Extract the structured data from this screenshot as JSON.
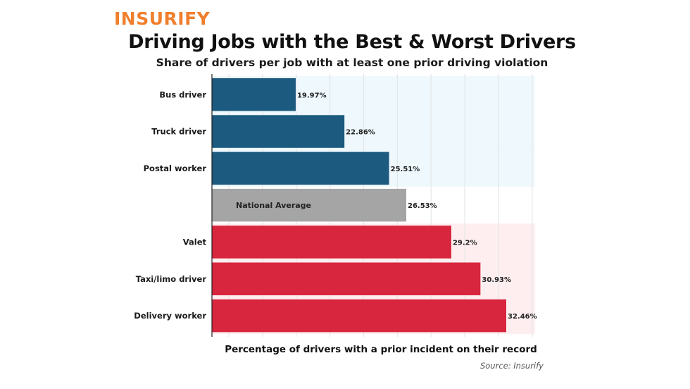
{
  "brand": "INSURIFY",
  "colors": {
    "brand": "#f07f2d",
    "best": "#1c5a80",
    "average": "#a5a5a5",
    "worst": "#d7263d",
    "band_best": "#e3f3fb",
    "band_worst": "#fde3e6",
    "grid": "#e6e6e6"
  },
  "chart_data": {
    "type": "bar",
    "orientation": "horizontal",
    "title": "Driving Jobs with the Best & Worst Drivers",
    "subtitle": "Share of drivers per job with at least one prior driving violation",
    "xlabel": "Percentage of drivers with a prior incident on their record",
    "ylabel": "",
    "source": "Source: Insurify",
    "xlim": [
      15,
      35
    ],
    "grid": true,
    "grid_step": 2,
    "categories": [
      "Bus driver",
      "Truck driver",
      "Postal worker",
      "National Average",
      "Valet",
      "Taxi/limo driver",
      "Delivery worker"
    ],
    "values": [
      19.97,
      22.86,
      25.51,
      26.53,
      29.2,
      30.93,
      32.46
    ],
    "value_labels": [
      "19.97%",
      "22.86%",
      "25.51%",
      "26.53%",
      "29.2%",
      "30.93%",
      "32.46%"
    ],
    "groups": [
      "best",
      "best",
      "best",
      "average",
      "worst",
      "worst",
      "worst"
    ],
    "average_label_inside": true
  }
}
